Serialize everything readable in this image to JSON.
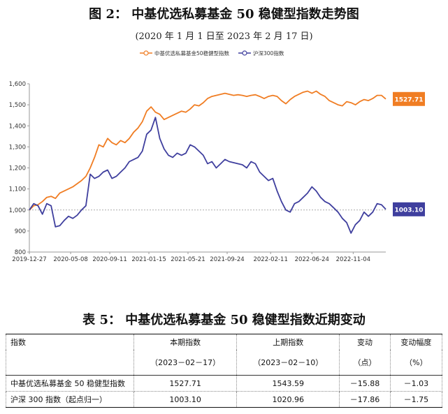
{
  "figure": {
    "title": "图 2： 中基优选私募基金 50 稳健型指数走势图",
    "subtitle": "(2020 年 1 月 1 日至 2023 年 2 月 17 日)"
  },
  "chart_data": {
    "type": "line",
    "legend_placement": "top-center",
    "series": [
      {
        "name": "中基优选私募基金50稳健型指数",
        "color": "#F07D23",
        "end_label": "1527.71",
        "points": [
          [
            "2019-12-27",
            1000
          ],
          [
            "2020-01-10",
            1020
          ],
          [
            "2020-01-24",
            1025
          ],
          [
            "2020-02-07",
            1040
          ],
          [
            "2020-02-21",
            1060
          ],
          [
            "2020-03-06",
            1065
          ],
          [
            "2020-03-20",
            1055
          ],
          [
            "2020-04-03",
            1080
          ],
          [
            "2020-04-17",
            1090
          ],
          [
            "2020-05-01",
            1100
          ],
          [
            "2020-05-15",
            1110
          ],
          [
            "2020-05-29",
            1125
          ],
          [
            "2020-06-12",
            1140
          ],
          [
            "2020-06-26",
            1160
          ],
          [
            "2020-07-10",
            1200
          ],
          [
            "2020-07-24",
            1250
          ],
          [
            "2020-08-07",
            1310
          ],
          [
            "2020-08-21",
            1300
          ],
          [
            "2020-09-04",
            1340
          ],
          [
            "2020-09-18",
            1320
          ],
          [
            "2020-10-02",
            1310
          ],
          [
            "2020-10-16",
            1330
          ],
          [
            "2020-10-30",
            1320
          ],
          [
            "2020-11-13",
            1340
          ],
          [
            "2020-11-27",
            1370
          ],
          [
            "2020-12-11",
            1390
          ],
          [
            "2020-12-25",
            1420
          ],
          [
            "2021-01-08",
            1470
          ],
          [
            "2021-01-22",
            1490
          ],
          [
            "2021-02-05",
            1465
          ],
          [
            "2021-02-19",
            1455
          ],
          [
            "2021-03-05",
            1430
          ],
          [
            "2021-03-19",
            1440
          ],
          [
            "2021-04-02",
            1450
          ],
          [
            "2021-04-16",
            1460
          ],
          [
            "2021-04-30",
            1470
          ],
          [
            "2021-05-14",
            1465
          ],
          [
            "2021-05-28",
            1480
          ],
          [
            "2021-06-11",
            1500
          ],
          [
            "2021-06-25",
            1495
          ],
          [
            "2021-07-09",
            1510
          ],
          [
            "2021-07-23",
            1530
          ],
          [
            "2021-08-06",
            1540
          ],
          [
            "2021-08-20",
            1545
          ],
          [
            "2021-09-03",
            1550
          ],
          [
            "2021-09-17",
            1555
          ],
          [
            "2021-10-01",
            1550
          ],
          [
            "2021-10-15",
            1545
          ],
          [
            "2021-10-29",
            1548
          ],
          [
            "2021-11-12",
            1545
          ],
          [
            "2021-11-26",
            1540
          ],
          [
            "2021-12-10",
            1545
          ],
          [
            "2021-12-24",
            1548
          ],
          [
            "2022-01-07",
            1540
          ],
          [
            "2022-01-21",
            1530
          ],
          [
            "2022-02-04",
            1540
          ],
          [
            "2022-02-18",
            1545
          ],
          [
            "2022-03-04",
            1540
          ],
          [
            "2022-03-18",
            1520
          ],
          [
            "2022-04-01",
            1505
          ],
          [
            "2022-04-15",
            1525
          ],
          [
            "2022-04-29",
            1540
          ],
          [
            "2022-05-13",
            1550
          ],
          [
            "2022-05-27",
            1560
          ],
          [
            "2022-06-10",
            1565
          ],
          [
            "2022-06-24",
            1555
          ],
          [
            "2022-07-08",
            1565
          ],
          [
            "2022-07-22",
            1550
          ],
          [
            "2022-08-05",
            1540
          ],
          [
            "2022-08-19",
            1520
          ],
          [
            "2022-09-02",
            1510
          ],
          [
            "2022-09-16",
            1500
          ],
          [
            "2022-09-30",
            1495
          ],
          [
            "2022-10-14",
            1515
          ],
          [
            "2022-10-28",
            1510
          ],
          [
            "2022-11-11",
            1500
          ],
          [
            "2022-11-25",
            1515
          ],
          [
            "2022-12-09",
            1525
          ],
          [
            "2022-12-23",
            1520
          ],
          [
            "2023-01-06",
            1530
          ],
          [
            "2023-01-20",
            1545
          ],
          [
            "2023-02-03",
            1545
          ],
          [
            "2023-02-17",
            1527.71
          ]
        ]
      },
      {
        "name": "沪深300指数",
        "color": "#3F3F9E",
        "end_label": "1003.10",
        "points": [
          [
            "2019-12-27",
            1000
          ],
          [
            "2020-01-10",
            1030
          ],
          [
            "2020-01-24",
            1020
          ],
          [
            "2020-02-07",
            980
          ],
          [
            "2020-02-21",
            1030
          ],
          [
            "2020-03-06",
            1020
          ],
          [
            "2020-03-20",
            920
          ],
          [
            "2020-04-03",
            925
          ],
          [
            "2020-04-17",
            950
          ],
          [
            "2020-05-01",
            970
          ],
          [
            "2020-05-15",
            960
          ],
          [
            "2020-05-29",
            975
          ],
          [
            "2020-06-12",
            1000
          ],
          [
            "2020-06-26",
            1020
          ],
          [
            "2020-07-10",
            1170
          ],
          [
            "2020-07-24",
            1150
          ],
          [
            "2020-08-07",
            1160
          ],
          [
            "2020-08-21",
            1180
          ],
          [
            "2020-09-04",
            1190
          ],
          [
            "2020-09-18",
            1150
          ],
          [
            "2020-10-02",
            1160
          ],
          [
            "2020-10-16",
            1180
          ],
          [
            "2020-10-30",
            1200
          ],
          [
            "2020-11-13",
            1230
          ],
          [
            "2020-11-27",
            1240
          ],
          [
            "2020-12-11",
            1250
          ],
          [
            "2020-12-25",
            1280
          ],
          [
            "2021-01-08",
            1360
          ],
          [
            "2021-01-22",
            1380
          ],
          [
            "2021-02-05",
            1440
          ],
          [
            "2021-02-19",
            1340
          ],
          [
            "2021-03-05",
            1290
          ],
          [
            "2021-03-19",
            1260
          ],
          [
            "2021-04-02",
            1250
          ],
          [
            "2021-04-16",
            1270
          ],
          [
            "2021-04-30",
            1260
          ],
          [
            "2021-05-14",
            1270
          ],
          [
            "2021-05-28",
            1310
          ],
          [
            "2021-06-11",
            1300
          ],
          [
            "2021-06-25",
            1280
          ],
          [
            "2021-07-09",
            1260
          ],
          [
            "2021-07-23",
            1220
          ],
          [
            "2021-08-06",
            1230
          ],
          [
            "2021-08-20",
            1200
          ],
          [
            "2021-09-03",
            1220
          ],
          [
            "2021-09-17",
            1240
          ],
          [
            "2021-10-01",
            1230
          ],
          [
            "2021-10-15",
            1225
          ],
          [
            "2021-10-29",
            1220
          ],
          [
            "2021-11-12",
            1215
          ],
          [
            "2021-11-26",
            1200
          ],
          [
            "2021-12-10",
            1230
          ],
          [
            "2021-12-24",
            1220
          ],
          [
            "2022-01-07",
            1180
          ],
          [
            "2022-01-21",
            1160
          ],
          [
            "2022-02-04",
            1140
          ],
          [
            "2022-02-18",
            1150
          ],
          [
            "2022-03-04",
            1090
          ],
          [
            "2022-03-18",
            1040
          ],
          [
            "2022-04-01",
            1000
          ],
          [
            "2022-04-15",
            990
          ],
          [
            "2022-04-29",
            1030
          ],
          [
            "2022-05-13",
            1040
          ],
          [
            "2022-05-27",
            1060
          ],
          [
            "2022-06-10",
            1080
          ],
          [
            "2022-06-24",
            1110
          ],
          [
            "2022-07-08",
            1090
          ],
          [
            "2022-07-22",
            1060
          ],
          [
            "2022-08-05",
            1040
          ],
          [
            "2022-08-19",
            1030
          ],
          [
            "2022-09-02",
            1010
          ],
          [
            "2022-09-16",
            990
          ],
          [
            "2022-09-30",
            960
          ],
          [
            "2022-10-14",
            940
          ],
          [
            "2022-10-28",
            890
          ],
          [
            "2022-11-11",
            930
          ],
          [
            "2022-11-25",
            950
          ],
          [
            "2022-12-09",
            990
          ],
          [
            "2022-12-23",
            970
          ],
          [
            "2023-01-06",
            990
          ],
          [
            "2023-01-20",
            1030
          ],
          [
            "2023-02-03",
            1025
          ],
          [
            "2023-02-17",
            1003.1
          ]
        ]
      }
    ],
    "ylim": [
      800,
      1600
    ],
    "y_ticks": [
      800,
      900,
      1000,
      1100,
      1200,
      1300,
      1400,
      1500,
      1600
    ],
    "y_tick_labels": [
      "800",
      "900",
      "1,000",
      "1,100",
      "1,200",
      "1,300",
      "1,400",
      "1,500",
      "1,600"
    ],
    "x_range": [
      "2019-12-27",
      "2023-02-17"
    ],
    "x_ticks": [
      "2019-12-27",
      "2020-05-08",
      "2020-09-11",
      "2021-01-15",
      "2021-05-21",
      "2021-09-24",
      "2022-02-11",
      "2022-06-24",
      "2022-11-04"
    ],
    "reference_line": 1000
  },
  "table": {
    "title": "表 5： 中基优选私募基金 50 稳健型指数近期变动",
    "headers": [
      "指数",
      "本期指数",
      "上期指数",
      "变动",
      "变动幅度"
    ],
    "subheaders": [
      "",
      "（2023－02－17）",
      "（2023－02－10）",
      "（点）",
      "（%）"
    ],
    "rows": [
      [
        "中基优选私募基金 50 稳健型指数",
        "1527.71",
        "1543.59",
        "－15.88",
        "－1.03"
      ],
      [
        "沪深 300 指数（起点归一）",
        "1003.10",
        "1020.96",
        "－17.86",
        "－1.75"
      ]
    ]
  }
}
